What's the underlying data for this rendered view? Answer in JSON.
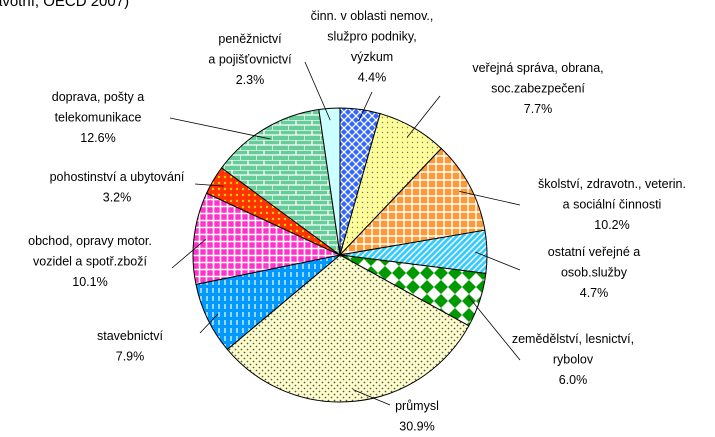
{
  "chart_data": {
    "type": "pie",
    "title": "avotní, OECD 2007)",
    "categories": [
      "činn. v oblasti nemov.,\nslužpro podniky,\nvýzkum",
      "veřejná správa, obrana,\nsoc.zabezpečení",
      "školství, zdravotn., veterin.\na sociální činnosti",
      "ostatní veřejné a\nosob.služby",
      "zemědělství, lesnictví,\nrybolov",
      "průmysl",
      "stavebnictví",
      "obchod, opravy motor.\nvozidel a spotř.zboží",
      "pohostinství a ubytování",
      "doprava, pošty a\ntelekomunikace",
      "peněžnictví\na pojišťovnictví"
    ],
    "values": [
      4.4,
      7.7,
      10.2,
      4.7,
      6.0,
      30.9,
      7.9,
      10.1,
      3.2,
      12.6,
      2.3
    ],
    "value_labels": [
      "4.4%",
      "7.7%",
      "10.2%",
      "4.7%",
      "6.0%",
      "30.9%",
      "7.9%",
      "10.1%",
      "3.2%",
      "12.6%",
      "2.3%"
    ],
    "colors": [
      "#3366ff",
      "#ffff99",
      "#ff9933",
      "#33ccff",
      "#009900",
      "#ffffcc",
      "#0099ff",
      "#ff33cc",
      "#ff3300",
      "#66cc99",
      "#ccffff"
    ]
  }
}
